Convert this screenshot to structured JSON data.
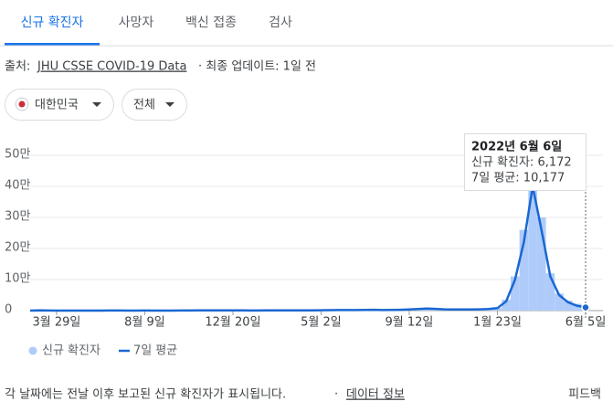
{
  "tabs": [
    "신규 확진자",
    "사망자",
    "백신 접종",
    "검사"
  ],
  "source": {
    "prefix": "출처:",
    "link": "JHU CSSE COVID-19 Data",
    "updated": "· 최종 업데이트: 1일 전"
  },
  "filters": [
    "대한민국",
    "전체"
  ],
  "tooltip": {
    "date": "2022년 6월 6일",
    "new_cases": "신규 확진자: 6,172",
    "average": "7일 평균: 10,177"
  },
  "chart_data": {
    "type": "bar-line",
    "categories": [
      null,
      null,
      null,
      "3월 29일",
      null,
      null,
      null,
      null,
      null,
      null,
      null,
      null,
      null,
      "8월 9일",
      null,
      null,
      null,
      null,
      null,
      null,
      null,
      null,
      null,
      "12월 20일",
      null,
      null,
      null,
      null,
      null,
      null,
      null,
      null,
      null,
      "5월 2일",
      null,
      null,
      null,
      null,
      null,
      null,
      null,
      null,
      null,
      "9월 12일",
      null,
      null,
      null,
      null,
      null,
      null,
      null,
      null,
      null,
      "1월 23일",
      null,
      null,
      null,
      null,
      null,
      null,
      null,
      null,
      null,
      "6월 5일"
    ],
    "series": [
      {
        "name": "신규 확진자",
        "type": "bar",
        "color": "#aecbfa",
        "values": [
          150,
          700,
          250,
          120,
          40,
          25,
          35,
          45,
          60,
          250,
          160,
          120,
          110,
          300,
          140,
          90,
          120,
          180,
          350,
          700,
          1000,
          1100,
          800,
          550,
          480,
          420,
          430,
          480,
          580,
          640,
          750,
          680,
          630,
          1300,
          1600,
          1800,
          1900,
          2000,
          2100,
          2700,
          1900,
          2300,
          2900,
          3800,
          5500,
          7000,
          5800,
          4200,
          4000,
          3600,
          3900,
          4300,
          5500,
          8500,
          35000,
          110000,
          260000,
          480000,
          300000,
          120000,
          55000,
          32000,
          22000,
          6172
        ]
      },
      {
        "name": "7일 평균",
        "type": "line",
        "color": "#1967d2",
        "values": [
          100,
          600,
          200,
          100,
          30,
          20,
          30,
          40,
          50,
          200,
          150,
          100,
          100,
          250,
          120,
          80,
          100,
          150,
          300,
          600,
          900,
          1000,
          700,
          500,
          450,
          400,
          400,
          450,
          550,
          600,
          700,
          650,
          600,
          1200,
          1500,
          1700,
          1800,
          1900,
          2000,
          2500,
          1800,
          2200,
          2700,
          3500,
          5000,
          6500,
          5500,
          4000,
          3800,
          3500,
          3800,
          4000,
          5000,
          8000,
          30000,
          100000,
          220000,
          400000,
          260000,
          110000,
          50000,
          27000,
          16000,
          10177
        ]
      }
    ],
    "ylim": [
      0,
      550000
    ],
    "yticks": [
      0,
      {
        "value": 100000,
        "label": "10만"
      },
      {
        "value": 200000,
        "label": "20만"
      },
      {
        "value": 300000,
        "label": "30만"
      },
      {
        "value": 400000,
        "label": "40만"
      },
      {
        "value": 500000,
        "label": "50만"
      }
    ],
    "grid": true
  },
  "footer": {
    "note": "각 날짜에는 전날 이후 보고된 신규 확진자가 표시됩니다.",
    "separator": "·",
    "link": "데이터 정보",
    "feedback": "피드백"
  }
}
